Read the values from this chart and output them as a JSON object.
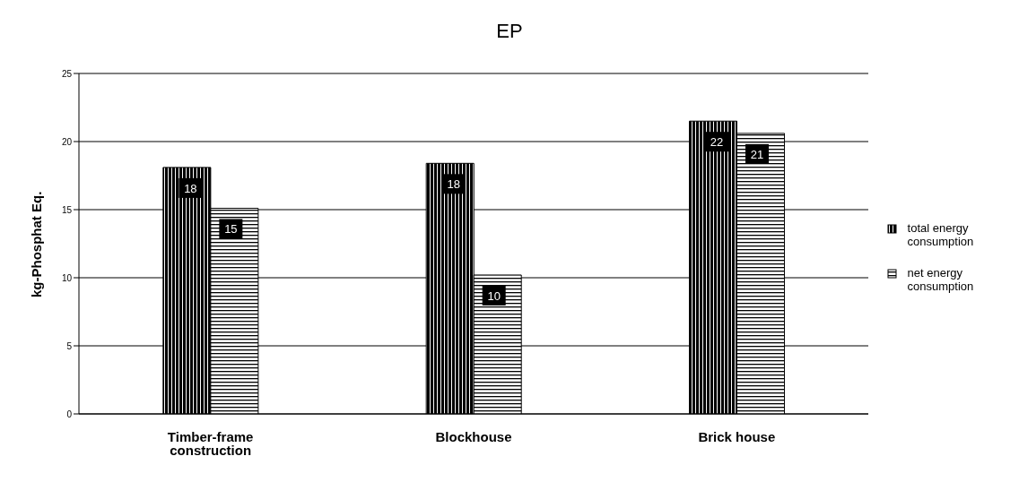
{
  "chart_data": {
    "type": "bar",
    "title": "EP",
    "ylabel": "kg-Phosphat Eq.",
    "categories": [
      "Timber-frame construction",
      "Blockhouse",
      "Brick house"
    ],
    "series": [
      {
        "name": "total energy consumption",
        "color": "#000000",
        "values": [
          18.1,
          18.4,
          21.5
        ],
        "value_labels": [
          "18",
          "18",
          "22"
        ]
      },
      {
        "name": "net energy consumption",
        "color": "#000000",
        "values": [
          15.1,
          10.2,
          20.6
        ],
        "value_labels": [
          "15",
          "10",
          "21"
        ]
      }
    ],
    "ylim": [
      0,
      25
    ],
    "yticks": [
      0,
      5,
      10,
      15,
      20,
      25
    ],
    "grid": "y",
    "legend": "right"
  }
}
